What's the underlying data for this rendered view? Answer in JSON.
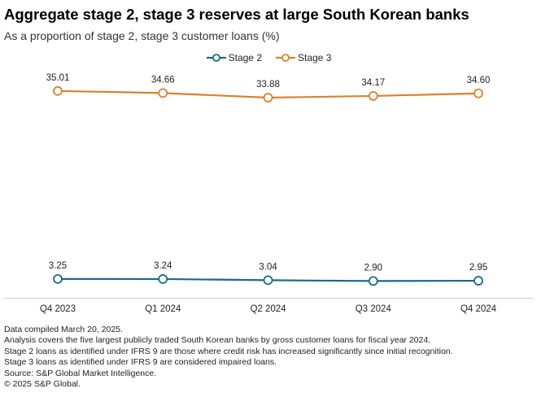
{
  "title": "Aggregate stage 2, stage 3 reserves at large South Korean banks",
  "subtitle": "As a proportion of stage 2, stage 3 customer loans (%)",
  "colors": {
    "stage2": "#1a6a8e",
    "stage3": "#d9822b",
    "axis": "#cccccc"
  },
  "chart_data": {
    "type": "line",
    "title": "Aggregate stage 2, stage 3 reserves at large South Korean banks",
    "subtitle": "As a proportion of stage 2, stage 3 customer loans (%)",
    "categories": [
      "Q4 2023",
      "Q1 2024",
      "Q2 2024",
      "Q3 2024",
      "Q4 2024"
    ],
    "series": [
      {
        "name": "Stage 2",
        "values": [
          3.25,
          3.24,
          3.04,
          2.9,
          2.95
        ],
        "labels": [
          "3.25",
          "3.24",
          "3.04",
          "2.90",
          "2.95"
        ]
      },
      {
        "name": "Stage 3",
        "values": [
          35.01,
          34.66,
          33.88,
          34.17,
          34.6
        ],
        "labels": [
          "35.01",
          "34.66",
          "33.88",
          "34.17",
          "34.60"
        ]
      }
    ],
    "xlabel": "",
    "ylabel": "",
    "ylim": [
      0,
      40
    ],
    "legend": "top-center",
    "grid": false
  },
  "footnotes": [
    "Data compiled March 20, 2025.",
    "Analysis covers the five largest publicly traded South Korean banks by gross customer loans for fiscal year 2024.",
    "Stage 2 loans as identified under IFRS 9 are those where credit risk has increased significantly since initial recognition.",
    "Stage 3 loans as identified under IFRS 9 are considered impaired loans.",
    "Source: S&P Global Market Intelligence.",
    "© 2025 S&P Global."
  ]
}
